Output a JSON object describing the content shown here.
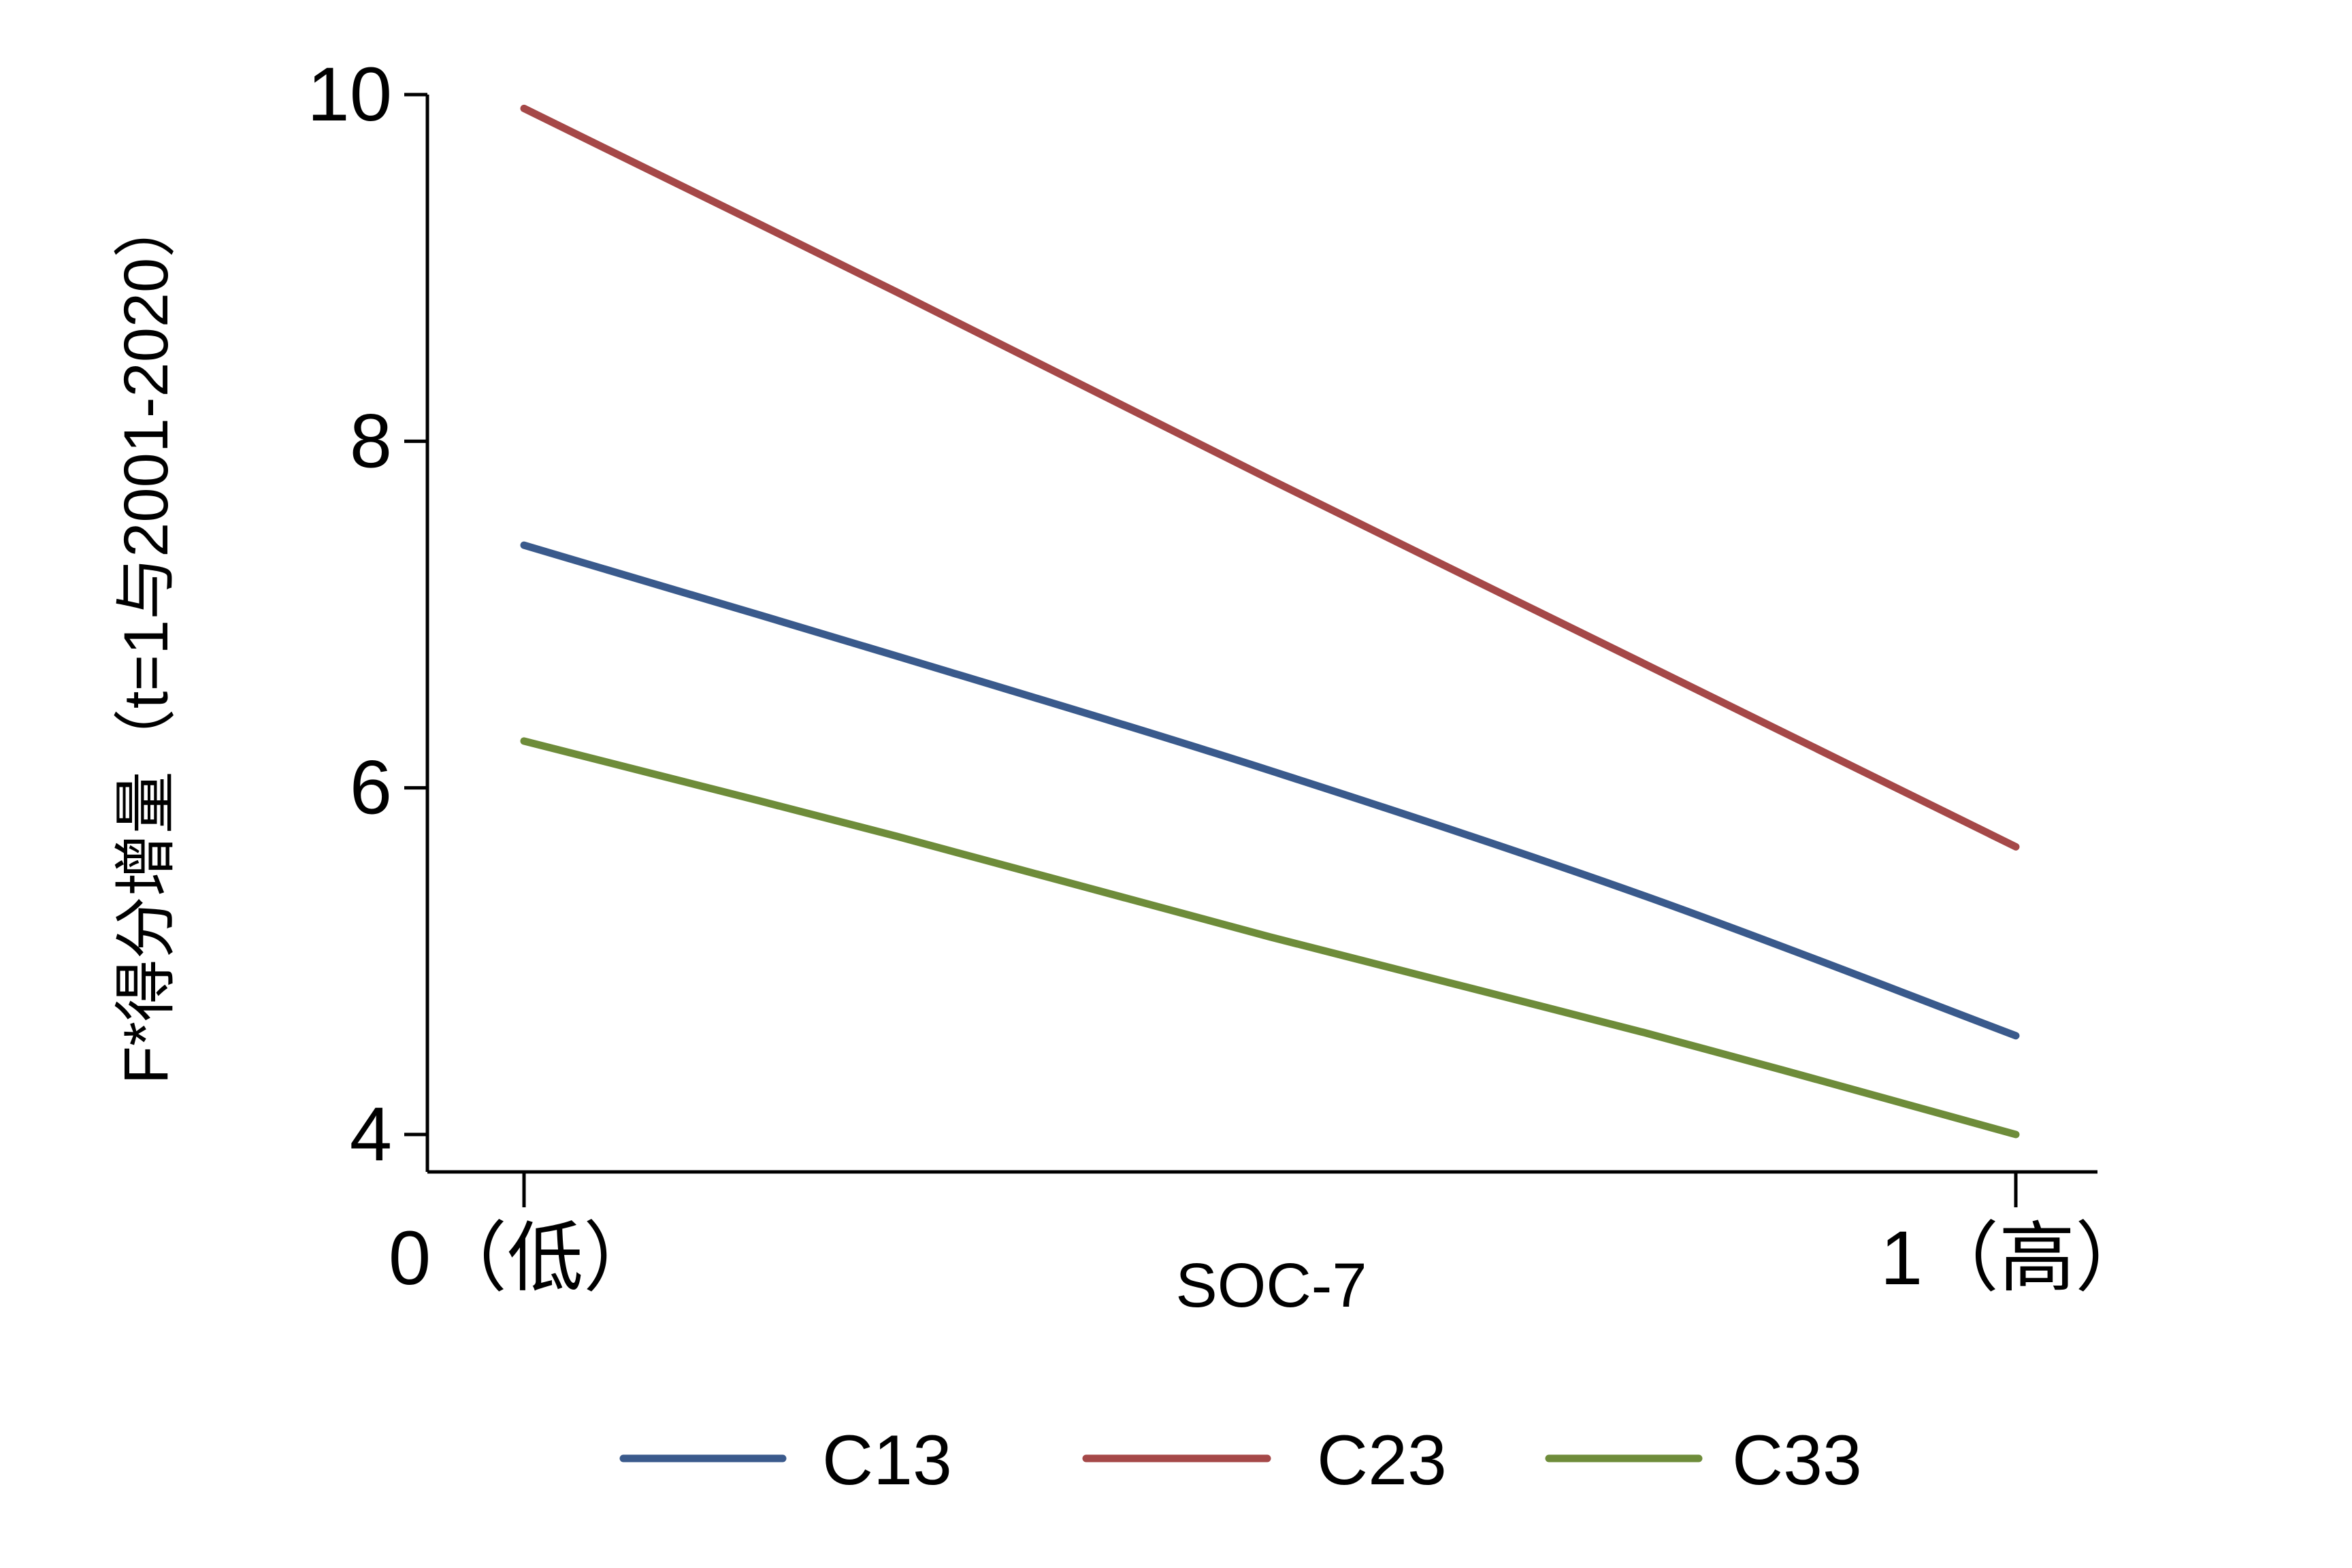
{
  "chart_data": {
    "type": "line",
    "title": "",
    "xlabel": "SOC-7",
    "ylabel": "F*得分增量（t=1与2001-2020）",
    "x": [
      0,
      1
    ],
    "x_tick_labels": [
      "0（低）",
      "1（高）"
    ],
    "xlim": [
      -0.065,
      1.05
    ],
    "ylim": [
      3.9,
      10.2
    ],
    "y_ticks": [
      4,
      6,
      8,
      10
    ],
    "y_tick_labels": [
      "4",
      "6",
      "8",
      "10"
    ],
    "grid": false,
    "legend_position": "bottom",
    "series": [
      {
        "name": "C13",
        "color": "#3A5A8C",
        "points": [
          [
            0,
            7.4
          ],
          [
            0.25,
            6.76
          ],
          [
            0.5,
            6.1
          ],
          [
            0.75,
            5.38
          ],
          [
            1,
            4.57
          ]
        ]
      },
      {
        "name": "C23",
        "color": "#A54848",
        "points": [
          [
            0,
            9.92
          ],
          [
            0.25,
            8.86
          ],
          [
            0.5,
            7.78
          ],
          [
            0.75,
            6.72
          ],
          [
            1,
            5.66
          ]
        ]
      },
      {
        "name": "C33",
        "color": "#6E8C3A",
        "points": [
          [
            0,
            6.27
          ],
          [
            0.25,
            5.72
          ],
          [
            0.5,
            5.14
          ],
          [
            0.75,
            4.59
          ],
          [
            1,
            4.0
          ]
        ]
      }
    ]
  }
}
